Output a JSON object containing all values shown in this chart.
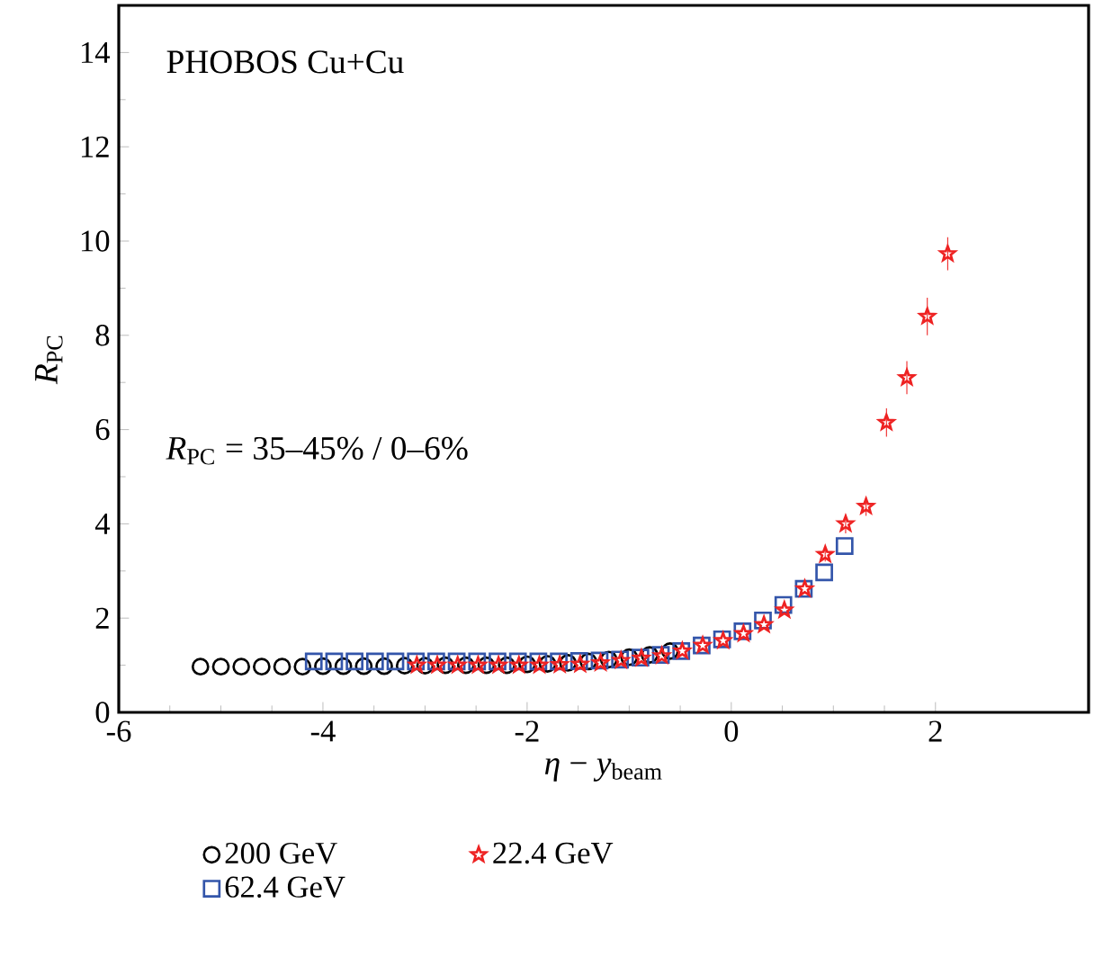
{
  "chart_data": {
    "type": "scatter",
    "xlabel": "*η* − *y*$_{beam}$",
    "ylabel": "*R*$_{PC}$",
    "annotations": [
      "PHOBOS Cu+Cu",
      "*R*$_{PC}$ = 35–45% / 0–6%"
    ],
    "xlim": [
      -6,
      3.5
    ],
    "ylim": [
      0,
      15
    ],
    "xticks": [
      -6,
      -4,
      -2,
      0,
      2
    ],
    "yticks": [
      0,
      2,
      4,
      6,
      8,
      10,
      12,
      14
    ],
    "legend": "bottom",
    "grid": false,
    "series": [
      {
        "name": "200 GeV",
        "color": "#000000",
        "marker": "circle",
        "x": [
          -5.2,
          -5.0,
          -4.8,
          -4.6,
          -4.4,
          -4.2,
          -4.0,
          -3.8,
          -3.6,
          -3.4,
          -3.2,
          -3.0,
          -2.8,
          -2.6,
          -2.4,
          -2.2,
          -2.0,
          -1.8,
          -1.6,
          -1.4,
          -1.2,
          -1.0,
          -0.8,
          -0.6
        ],
        "values": [
          0.97,
          0.97,
          0.97,
          0.97,
          0.97,
          0.97,
          0.98,
          0.98,
          0.98,
          0.98,
          0.99,
          0.99,
          1.0,
          1.0,
          1.0,
          1.0,
          1.02,
          1.03,
          1.05,
          1.08,
          1.12,
          1.17,
          1.22,
          1.3
        ]
      },
      {
        "name": "62.4 GeV",
        "color": "#3355aa",
        "marker": "square",
        "x": [
          -4.09,
          -3.89,
          -3.69,
          -3.49,
          -3.29,
          -3.09,
          -2.89,
          -2.69,
          -2.49,
          -2.29,
          -2.09,
          -1.89,
          -1.69,
          -1.49,
          -1.29,
          -1.09,
          -0.89,
          -0.69,
          -0.49,
          -0.29,
          -0.09,
          0.11,
          0.31,
          0.51,
          0.71,
          0.91,
          1.11
        ],
        "values": [
          1.08,
          1.08,
          1.08,
          1.08,
          1.08,
          1.08,
          1.08,
          1.08,
          1.08,
          1.08,
          1.08,
          1.08,
          1.08,
          1.09,
          1.1,
          1.12,
          1.16,
          1.22,
          1.3,
          1.42,
          1.55,
          1.72,
          1.95,
          2.28,
          2.62,
          2.97,
          3.53
        ]
      },
      {
        "name": "22.4 GeV",
        "color": "#ee2222",
        "marker": "star",
        "x": [
          -3.08,
          -2.88,
          -2.68,
          -2.48,
          -2.28,
          -2.08,
          -1.88,
          -1.68,
          -1.48,
          -1.28,
          -1.08,
          -0.88,
          -0.68,
          -0.48,
          -0.28,
          -0.08,
          0.12,
          0.32,
          0.52,
          0.72,
          0.92,
          1.12,
          1.32,
          1.52,
          1.72,
          1.92,
          2.12
        ],
        "values": [
          1.0,
          1.0,
          1.0,
          1.0,
          1.0,
          1.0,
          1.0,
          1.01,
          1.02,
          1.05,
          1.1,
          1.15,
          1.2,
          1.3,
          1.42,
          1.52,
          1.67,
          1.86,
          2.17,
          2.62,
          3.35,
          4.0,
          4.37,
          6.15,
          7.1,
          8.4,
          9.73
        ],
        "errors": [
          null,
          null,
          null,
          null,
          null,
          null,
          null,
          null,
          null,
          null,
          null,
          null,
          null,
          null,
          null,
          null,
          null,
          null,
          null,
          null,
          0.15,
          0.2,
          0.2,
          0.3,
          0.35,
          0.4,
          0.35
        ]
      }
    ]
  }
}
